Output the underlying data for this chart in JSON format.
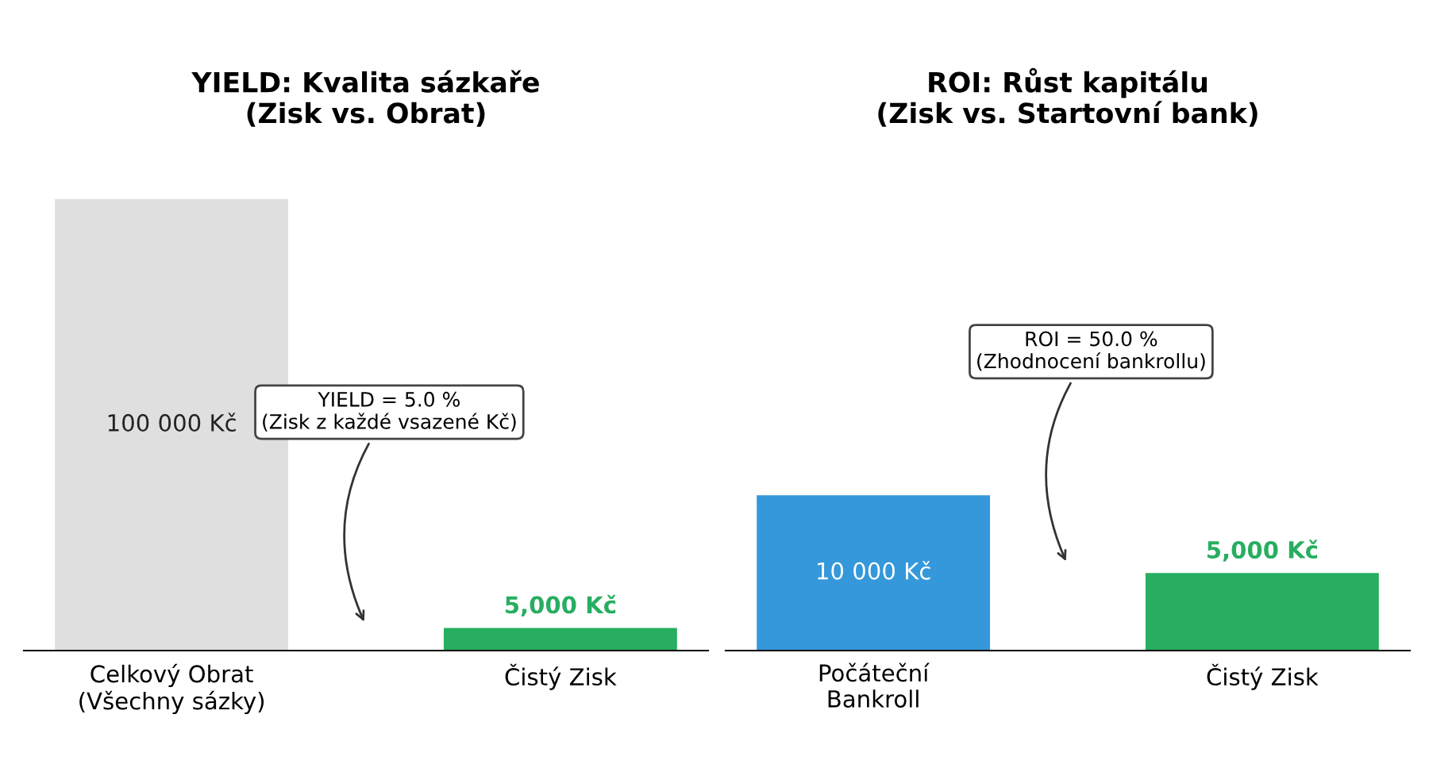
{
  "chart_data": [
    {
      "type": "bar",
      "title": "YIELD: Kvalita sázkaře\n(Zisk vs. Obrat)",
      "categories": [
        "Celkový Obrat\n(Všechny sázky)",
        "Čistý Zisk"
      ],
      "values": [
        100000,
        5000
      ],
      "colors": [
        "#dfdfdf",
        "#27ae60"
      ],
      "value_labels": [
        "100 000 Kč",
        "5,000 Kč"
      ],
      "tick_labels": "x",
      "grid": false,
      "annotations": [
        "YIELD = 5.0 %\n(Zisk z každé vsazené Kč)"
      ]
    },
    {
      "type": "bar",
      "title": "ROI: Růst kapitálu\n(Zisk vs. Startovní bank)",
      "categories": [
        "Počáteční\nBankroll",
        "Čistý Zisk"
      ],
      "values": [
        10000,
        5000
      ],
      "colors": [
        "#3498db",
        "#27ae60"
      ],
      "value_labels": [
        "10 000 Kč",
        "5,000 Kč"
      ],
      "tick_labels": "x",
      "grid": false,
      "annotations": [
        "ROI = 50.0 %\n(Zhodnocení bankrollu)"
      ]
    }
  ]
}
